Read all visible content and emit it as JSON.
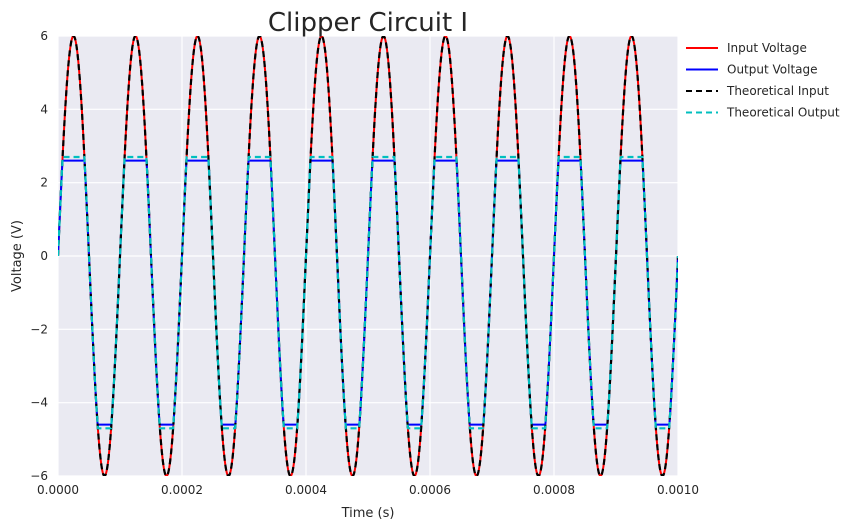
{
  "chart_data": {
    "type": "line",
    "title": "Clipper Circuit I",
    "xlabel": "Time (s)",
    "ylabel": "Voltage (V)",
    "xlim": [
      0,
      0.001
    ],
    "ylim": [
      -6,
      6
    ],
    "x_ticks": [
      "0.0000",
      "0.0002",
      "0.0004",
      "0.0006",
      "0.0008",
      "0.0010"
    ],
    "y_ticks": [
      "−6",
      "−4",
      "−2",
      "0",
      "2",
      "4",
      "6"
    ],
    "grid": true,
    "legend_position": "outside right, top",
    "waveform": {
      "shape": "sine",
      "amplitude_V": 6,
      "frequency_Hz": 10000,
      "periods_shown": 10
    },
    "series": [
      {
        "name": "Input Voltage",
        "color": "#ff0000",
        "style": "solid",
        "clip_upper_V": 6,
        "clip_lower_V": -6
      },
      {
        "name": "Output Voltage",
        "color": "#0000ff",
        "style": "solid",
        "clip_upper_V": 2.6,
        "clip_lower_V": -4.6
      },
      {
        "name": "Theoretical Input",
        "color": "#000000",
        "style": "dashed",
        "clip_upper_V": 6,
        "clip_lower_V": -6
      },
      {
        "name": "Theoretical Output",
        "color": "#00bfbf",
        "style": "dashed",
        "clip_upper_V": 2.7,
        "clip_lower_V": -4.7
      }
    ]
  }
}
